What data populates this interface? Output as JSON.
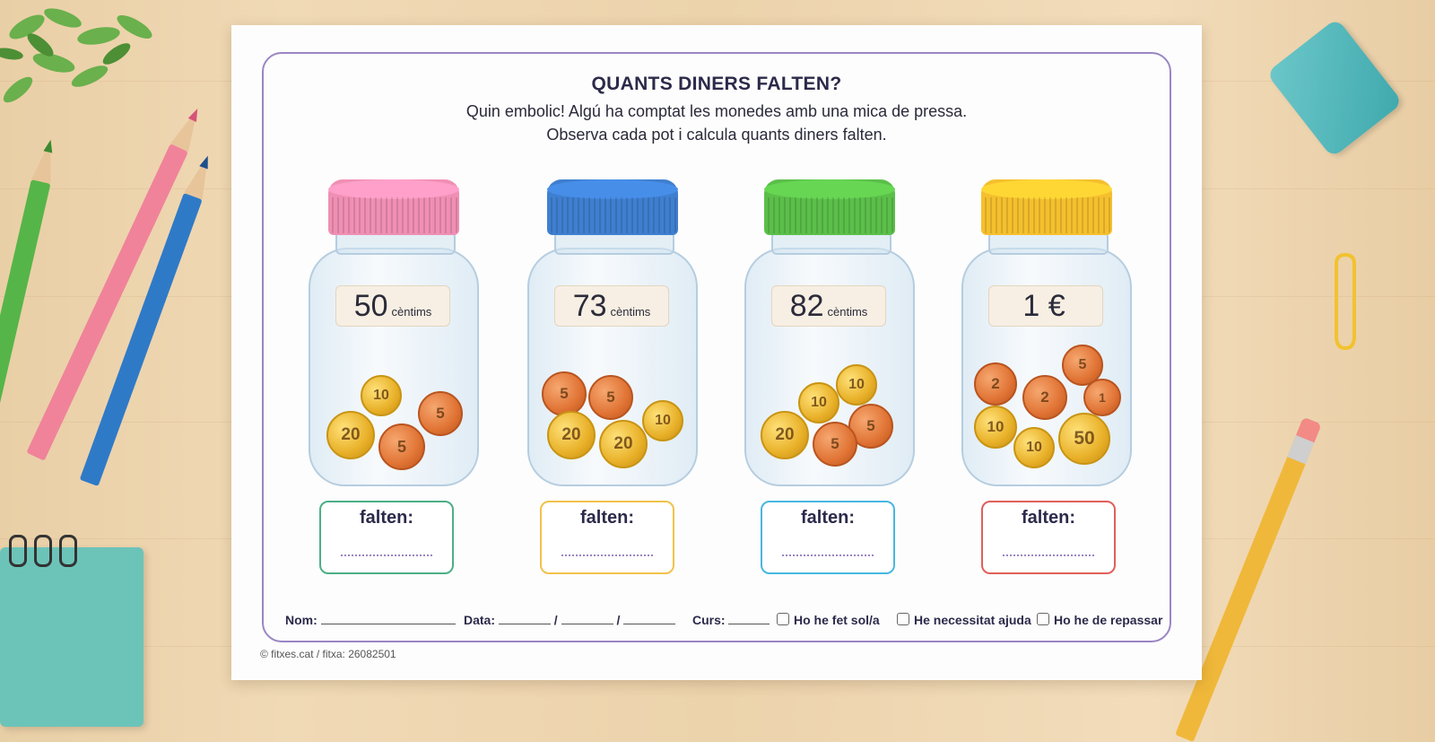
{
  "worksheet": {
    "title": "QUANTS DINERS FALTEN?",
    "subtitle_line1": "Quin embolic! Algú ha comptat les monedes amb una mica de pressa.",
    "subtitle_line2": "Observa cada pot i calcula quants diners falten."
  },
  "jars": [
    {
      "lid_color": "#f08fb4",
      "value": "50",
      "unit": "cèntims",
      "box_color": "#4caf86",
      "box_label": "falten:",
      "coins": [
        {
          "v": "10",
          "t": "gold"
        },
        {
          "v": "5",
          "t": "copper"
        },
        {
          "v": "20",
          "t": "gold"
        },
        {
          "v": "5",
          "t": "copper"
        }
      ]
    },
    {
      "lid_color": "#3f7fd0",
      "value": "73",
      "unit": "cèntims",
      "box_color": "#f1c24a",
      "box_label": "falten:",
      "coins": [
        {
          "v": "5",
          "t": "copper"
        },
        {
          "v": "5",
          "t": "copper"
        },
        {
          "v": "10",
          "t": "gold"
        },
        {
          "v": "20",
          "t": "gold"
        },
        {
          "v": "20",
          "t": "gold"
        }
      ]
    },
    {
      "lid_color": "#5bbf4a",
      "value": "82",
      "unit": "cèntims",
      "box_color": "#49b7df",
      "box_label": "falten:",
      "coins": [
        {
          "v": "10",
          "t": "gold"
        },
        {
          "v": "10",
          "t": "gold"
        },
        {
          "v": "20",
          "t": "gold"
        },
        {
          "v": "5",
          "t": "copper"
        },
        {
          "v": "5",
          "t": "copper"
        }
      ]
    },
    {
      "lid_color": "#f5c02e",
      "value": "1 €",
      "unit": "",
      "box_color": "#e0605a",
      "box_label": "falten:",
      "coins": [
        {
          "v": "2",
          "t": "copper"
        },
        {
          "v": "2",
          "t": "copper"
        },
        {
          "v": "5",
          "t": "copper"
        },
        {
          "v": "1",
          "t": "copper"
        },
        {
          "v": "10",
          "t": "gold"
        },
        {
          "v": "10",
          "t": "gold"
        },
        {
          "v": "50",
          "t": "gold"
        }
      ]
    }
  ],
  "footer": {
    "name_label": "Nom:",
    "date_label": "Data:",
    "date_sep": "/",
    "course_label": "Curs:",
    "check1": "Ho he fet sol/a",
    "check2": "He necessitat ajuda",
    "check3": "Ho he de repassar"
  },
  "copyright": "© fitxes.cat / fitxa: 26082501"
}
